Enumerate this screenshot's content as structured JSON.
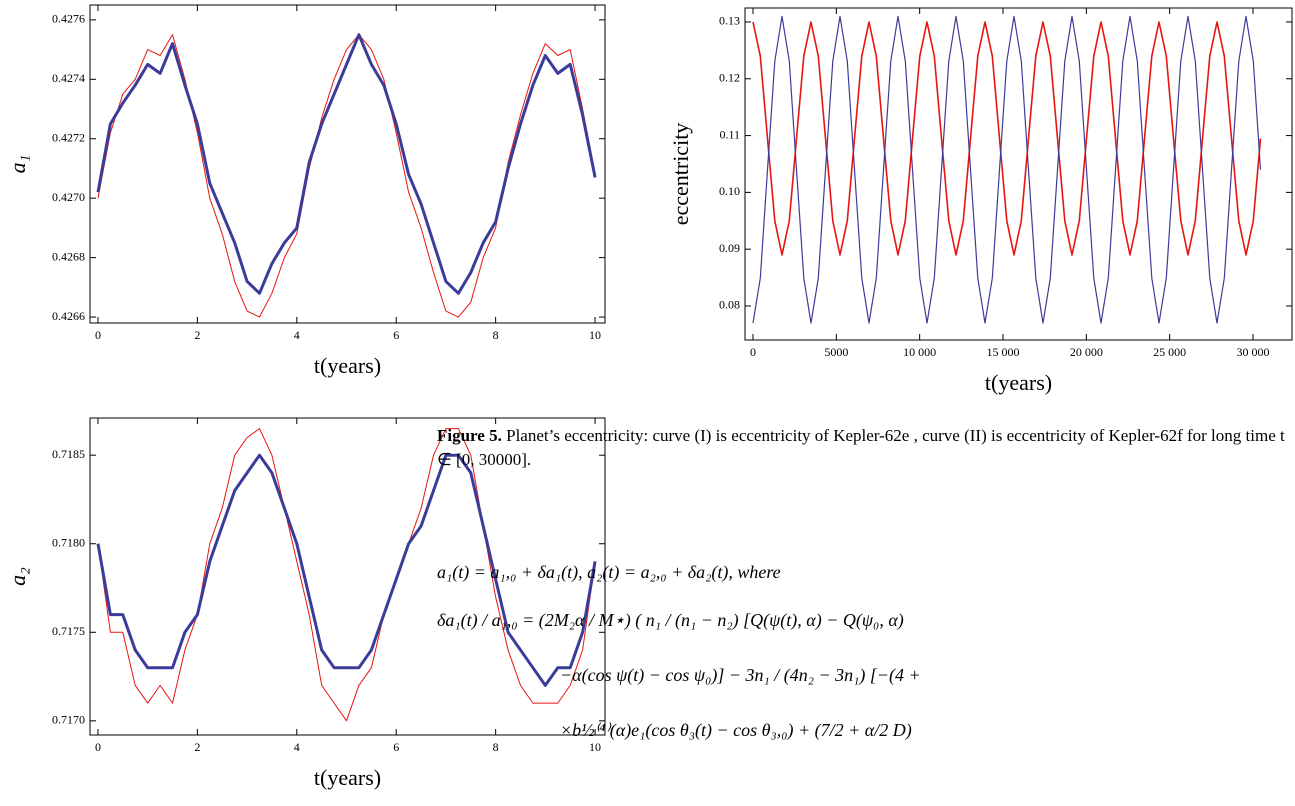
{
  "chart_data": [
    {
      "type": "line",
      "x_label": "t(years)",
      "y_label": "a₁",
      "xlim": [
        -0.16,
        10.2
      ],
      "ylim": [
        0.42658,
        0.42765
      ],
      "xticks": [
        0,
        2,
        4,
        6,
        8,
        10
      ],
      "yticks": [
        0.4266,
        0.4268,
        {
          "value": 0.427,
          "label": "0.4270"
        },
        0.4272,
        0.4274,
        0.4276
      ],
      "x": [
        0,
        0.25,
        0.5,
        0.75,
        1,
        1.25,
        1.5,
        1.75,
        2,
        2.25,
        2.5,
        2.75,
        3,
        3.25,
        3.5,
        3.75,
        4,
        4.25,
        4.5,
        4.75,
        5,
        5.25,
        5.5,
        5.75,
        6,
        6.25,
        6.5,
        6.75,
        7,
        7.25,
        7.5,
        7.75,
        8,
        8.25,
        8.5,
        8.75,
        9,
        9.25,
        9.5,
        9.75,
        10
      ],
      "series": [
        {
          "color": "#e8140f",
          "values": [
            0.427,
            0.42722,
            0.42735,
            0.4274,
            0.4275,
            0.42748,
            0.42755,
            0.4274,
            0.42722,
            0.427,
            0.42688,
            0.42672,
            0.42662,
            0.4266,
            0.42668,
            0.4268,
            0.42688,
            0.4271,
            0.42727,
            0.4274,
            0.4275,
            0.42755,
            0.4275,
            0.4274,
            0.42722,
            0.42702,
            0.4269,
            0.42675,
            0.42662,
            0.4266,
            0.42665,
            0.4268,
            0.4269,
            0.42712,
            0.42728,
            0.42742,
            0.42752,
            0.42748,
            0.4275,
            0.4273,
            0.42708
          ]
        },
        {
          "color": "#3b3b9a",
          "values": [
            0.42702,
            0.42725,
            0.42732,
            0.42738,
            0.42745,
            0.42742,
            0.42752,
            0.42738,
            0.42725,
            0.42705,
            0.42695,
            0.42685,
            0.42672,
            0.42668,
            0.42678,
            0.42685,
            0.4269,
            0.42712,
            0.42725,
            0.42735,
            0.42745,
            0.42755,
            0.42745,
            0.42738,
            0.42725,
            0.42708,
            0.42698,
            0.42685,
            0.42672,
            0.42668,
            0.42675,
            0.42685,
            0.42692,
            0.4271,
            0.42725,
            0.42738,
            0.42748,
            0.42742,
            0.42745,
            0.42728,
            0.42707
          ]
        }
      ]
    },
    {
      "type": "line",
      "x_label": "t(years)",
      "y_label": "a₂",
      "xlim": [
        -0.16,
        10.2
      ],
      "ylim": [
        0.71692,
        0.71871
      ],
      "xticks": [
        0,
        2,
        4,
        6,
        8,
        10
      ],
      "yticks": [
        {
          "value": 0.717,
          "label": "0.7170"
        },
        0.7175,
        {
          "value": 0.718,
          "label": "0.7180"
        },
        0.7185
      ],
      "x": [
        0,
        0.25,
        0.5,
        0.75,
        1,
        1.25,
        1.5,
        1.75,
        2,
        2.25,
        2.5,
        2.75,
        3,
        3.25,
        3.5,
        3.75,
        4,
        4.25,
        4.5,
        4.75,
        5,
        5.25,
        5.5,
        5.75,
        6,
        6.25,
        6.5,
        6.75,
        7,
        7.25,
        7.5,
        7.75,
        8,
        8.25,
        8.5,
        8.75,
        9,
        9.25,
        9.5,
        9.75,
        10
      ],
      "series": [
        {
          "color": "#e8140f",
          "values": [
            0.718,
            0.7175,
            0.7175,
            0.7172,
            0.7171,
            0.7172,
            0.7171,
            0.7174,
            0.7176,
            0.718,
            0.7182,
            0.7185,
            0.7186,
            0.71865,
            0.7185,
            0.7182,
            0.7179,
            0.7176,
            0.7172,
            0.7171,
            0.717,
            0.7172,
            0.7173,
            0.7176,
            0.7178,
            0.718,
            0.7182,
            0.7185,
            0.71865,
            0.71865,
            0.7185,
            0.7181,
            0.7177,
            0.7174,
            0.7172,
            0.7171,
            0.7171,
            0.7171,
            0.7172,
            0.7174,
            0.7179
          ]
        },
        {
          "color": "#3b3b9a",
          "values": [
            0.718,
            0.7176,
            0.7176,
            0.7174,
            0.7173,
            0.7173,
            0.7173,
            0.7175,
            0.7176,
            0.7179,
            0.7181,
            0.7183,
            0.7184,
            0.7185,
            0.7184,
            0.7182,
            0.718,
            0.7177,
            0.7174,
            0.7173,
            0.7173,
            0.7173,
            0.7174,
            0.7176,
            0.7178,
            0.718,
            0.7181,
            0.7183,
            0.7185,
            0.7185,
            0.7184,
            0.7181,
            0.7178,
            0.7175,
            0.7174,
            0.7173,
            0.7172,
            0.7173,
            0.7173,
            0.7175,
            0.7179
          ]
        }
      ]
    },
    {
      "type": "line",
      "x_label": "t(years)",
      "y_label": "eccentricity",
      "xlim": [
        -480,
        32340
      ],
      "ylim": [
        0.07401,
        0.13246
      ],
      "xticks": [
        0,
        5000,
        {
          "value": 10000,
          "label": "10 000"
        },
        {
          "value": 15000,
          "label": "15 000"
        },
        {
          "value": 20000,
          "label": "20 000"
        },
        {
          "value": 25000,
          "label": "25 000"
        },
        {
          "value": 30000,
          "label": "30 000"
        }
      ],
      "yticks": [
        0.08,
        0.09,
        {
          "value": 0.1,
          "label": "0.10"
        },
        0.11,
        0.12,
        0.13
      ],
      "x": [
        0,
        435,
        870,
        1305,
        1740,
        2175,
        2610,
        3045,
        3480,
        3915,
        4350,
        4785,
        5220,
        5655,
        6090,
        6525,
        6960,
        7395,
        7830,
        8265,
        8700,
        9135,
        9570,
        10005,
        10440,
        10875,
        11310,
        11745,
        12180,
        12615,
        13050,
        13485,
        13920,
        14355,
        14790,
        15225,
        15660,
        16095,
        16530,
        16965,
        17400,
        17835,
        18270,
        18705,
        19140,
        19575,
        20010,
        20445,
        20880,
        21315,
        21750,
        22185,
        22620,
        23055,
        23490,
        23925,
        24360,
        24795,
        25230,
        25665,
        26100,
        26535,
        26970,
        27405,
        27840,
        28275,
        28710,
        29145,
        29580,
        30015,
        30450
      ],
      "series": [
        {
          "color": "#e8140f",
          "values": [
            0.13,
            0.124,
            0.1095,
            0.095,
            0.089,
            0.095,
            0.1095,
            0.124,
            0.13,
            0.124,
            0.1095,
            0.095,
            0.089,
            0.095,
            0.1095,
            0.124,
            0.13,
            0.124,
            0.1095,
            0.095,
            0.089,
            0.095,
            0.1095,
            0.124,
            0.13,
            0.124,
            0.1095,
            0.095,
            0.089,
            0.095,
            0.1095,
            0.124,
            0.13,
            0.124,
            0.1095,
            0.095,
            0.089,
            0.095,
            0.1095,
            0.124,
            0.13,
            0.124,
            0.1095,
            0.095,
            0.089,
            0.095,
            0.1095,
            0.124,
            0.13,
            0.124,
            0.1095,
            0.095,
            0.089,
            0.095,
            0.1095,
            0.124,
            0.13,
            0.124,
            0.1095,
            0.095,
            0.089,
            0.095,
            0.1095,
            0.124,
            0.13,
            0.124,
            0.1095,
            0.095,
            0.089,
            0.095,
            0.1095
          ]
        },
        {
          "color": "#3b3b9a",
          "values": [
            0.077,
            0.0849,
            0.104,
            0.1231,
            0.131,
            0.1231,
            0.104,
            0.0849,
            0.077,
            0.0849,
            0.104,
            0.1231,
            0.131,
            0.1231,
            0.104,
            0.0849,
            0.077,
            0.0849,
            0.104,
            0.1231,
            0.131,
            0.1231,
            0.104,
            0.0849,
            0.077,
            0.0849,
            0.104,
            0.1231,
            0.131,
            0.1231,
            0.104,
            0.0849,
            0.077,
            0.0849,
            0.104,
            0.1231,
            0.131,
            0.1231,
            0.104,
            0.0849,
            0.077,
            0.0849,
            0.104,
            0.1231,
            0.131,
            0.1231,
            0.104,
            0.0849,
            0.077,
            0.0849,
            0.104,
            0.1231,
            0.131,
            0.1231,
            0.104,
            0.0849,
            0.077,
            0.0849,
            0.104,
            0.1231,
            0.131,
            0.1231,
            0.104,
            0.0849,
            0.077,
            0.0849,
            0.104,
            0.1231,
            0.131,
            0.1231,
            0.104
          ]
        }
      ]
    }
  ],
  "caption": {
    "label": "Figure 5.",
    "text": "Planet’s eccentricity: curve (I) is eccentricity of Kepler-62e , curve (II) is eccentricity of Kepler-62f for long time t ∈ [0, 30000]."
  },
  "equations": [
    "a₁(t) = a₁,₀ + δa₁(t),    a₂(t) = a₂,₀ + δa₂(t), where",
    "δa₁(t) / a₁,₀  =  (2M₂α / M⋆) ( n₁ / (n₁ − n₂) [Q(ψ(t), α) − Q(ψ₀, α)",
    "−α(cos ψ(t) − cos ψ₀)] − 3n₁ / (4n₂ − 3n₁) [−(4 +",
    "×b½⁽⁴⁾(α)e₁(cos θ₃(t) − cos θ₃,₀) + (7/2 + α/2 D)"
  ]
}
